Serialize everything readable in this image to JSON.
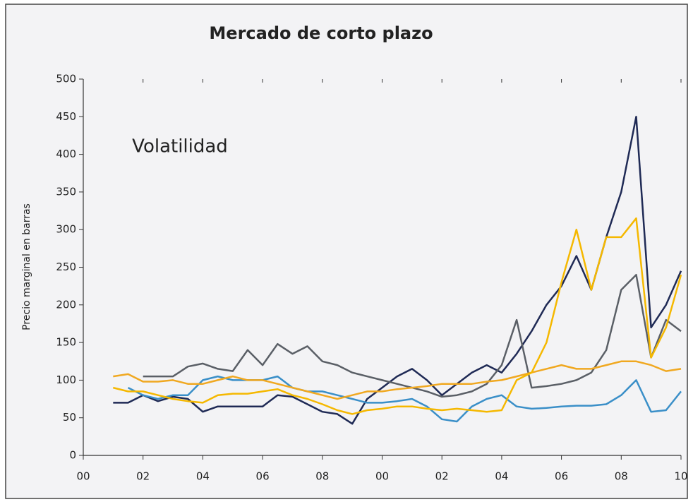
{
  "chart_data": {
    "type": "line",
    "title": "Mercado de corto plazo",
    "ylabel": "Precio marginal en barras",
    "annotation": "Volatilidad",
    "x": [
      1,
      1.5,
      2,
      2.5,
      3,
      3.5,
      4,
      4.5,
      5,
      5.5,
      6,
      6.5,
      7,
      7.5,
      8,
      8.5,
      9,
      9.5,
      10,
      10.5,
      11,
      11.5,
      12,
      12.5,
      13,
      13.5,
      14,
      14.5,
      15,
      15.5,
      16,
      16.5,
      17,
      17.5,
      18,
      18.5,
      19,
      19.5,
      20
    ],
    "series": [
      {
        "color": "#1f2a55",
        "values": [
          70,
          70,
          80,
          72,
          78,
          75,
          58,
          65,
          65,
          65,
          65,
          80,
          78,
          68,
          58,
          55,
          42,
          75,
          90,
          105,
          115,
          100,
          80,
          95,
          110,
          120,
          110,
          135,
          165,
          200,
          225,
          265,
          220,
          290,
          350,
          450,
          170,
          200,
          245
        ]
      },
      {
        "color": "#5a5f66",
        "values": [
          null,
          null,
          105,
          105,
          105,
          118,
          122,
          115,
          112,
          140,
          120,
          148,
          135,
          145,
          125,
          120,
          110,
          105,
          100,
          95,
          90,
          85,
          78,
          80,
          85,
          95,
          120,
          180,
          90,
          92,
          95,
          100,
          110,
          140,
          220,
          240,
          130,
          180,
          165
        ]
      },
      {
        "color": "#3a8fc8",
        "values": [
          null,
          90,
          80,
          75,
          80,
          80,
          100,
          105,
          100,
          100,
          100,
          105,
          90,
          85,
          85,
          80,
          75,
          70,
          70,
          72,
          75,
          65,
          48,
          45,
          65,
          75,
          80,
          65,
          62,
          63,
          65,
          66,
          66,
          68,
          80,
          100,
          58,
          60,
          85
        ]
      },
      {
        "color": "#f0a820",
        "values": [
          105,
          108,
          98,
          98,
          100,
          95,
          95,
          100,
          105,
          100,
          100,
          95,
          90,
          85,
          80,
          75,
          80,
          85,
          85,
          88,
          90,
          92,
          95,
          95,
          95,
          98,
          100,
          105,
          110,
          115,
          120,
          115,
          115,
          120,
          125,
          125,
          120,
          112,
          115
        ]
      },
      {
        "color": "#f5b800",
        "values": [
          90,
          85,
          85,
          80,
          75,
          72,
          70,
          80,
          82,
          82,
          85,
          88,
          80,
          75,
          68,
          60,
          55,
          60,
          62,
          65,
          65,
          62,
          60,
          62,
          60,
          58,
          60,
          100,
          110,
          150,
          230,
          300,
          220,
          290,
          290,
          315,
          130,
          170,
          240
        ]
      }
    ],
    "xlim": [
      0,
      20
    ],
    "ylim": [
      0,
      500
    ],
    "xticks": [
      {
        "value": 0,
        "label": "00"
      },
      {
        "value": 2,
        "label": "02"
      },
      {
        "value": 4,
        "label": "04"
      },
      {
        "value": 6,
        "label": "06"
      },
      {
        "value": 8,
        "label": "08"
      },
      {
        "value": 10,
        "label": "00"
      },
      {
        "value": 12,
        "label": "02"
      },
      {
        "value": 14,
        "label": "04"
      },
      {
        "value": 16,
        "label": "06"
      },
      {
        "value": 18,
        "label": "08"
      },
      {
        "value": 20,
        "label": "10"
      }
    ],
    "yticks": [
      0,
      50,
      100,
      150,
      200,
      250,
      300,
      350,
      400,
      450,
      500
    ]
  }
}
